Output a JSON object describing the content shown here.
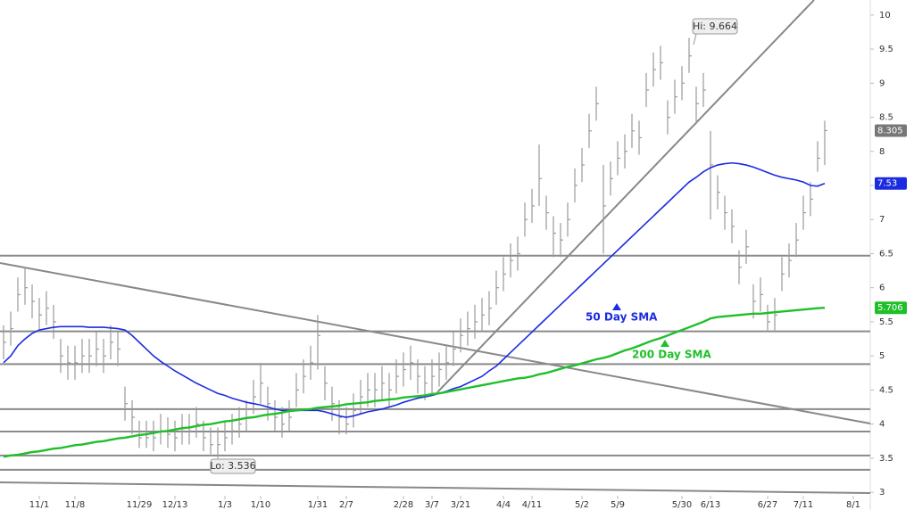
{
  "chart_data": {
    "type": "ohlc",
    "categories": [
      null,
      null,
      null,
      null,
      null,
      "11/1",
      null,
      null,
      null,
      null,
      "11/8",
      null,
      null,
      null,
      null,
      null,
      null,
      null,
      null,
      "11/29",
      null,
      null,
      null,
      null,
      "12/13",
      null,
      null,
      null,
      null,
      null,
      null,
      "1/3",
      null,
      null,
      null,
      null,
      "1/10",
      null,
      null,
      null,
      null,
      null,
      null,
      null,
      "1/31",
      null,
      null,
      null,
      "2/7",
      null,
      null,
      null,
      null,
      null,
      null,
      null,
      "2/28",
      null,
      null,
      null,
      "3/7",
      null,
      null,
      null,
      "3/21",
      null,
      null,
      null,
      null,
      null,
      "4/4",
      null,
      null,
      null,
      "4/11",
      null,
      null,
      null,
      null,
      null,
      null,
      "5/2",
      null,
      null,
      null,
      null,
      "5/9",
      null,
      null,
      null,
      null,
      null,
      null,
      null,
      null,
      "5/30",
      null,
      null,
      null,
      "6/13",
      null,
      null,
      null,
      null,
      null,
      null,
      null,
      "6/27",
      null,
      null,
      null,
      null,
      "7/11",
      null,
      null,
      null,
      null,
      null,
      null,
      "8/1"
    ],
    "high": [
      5.45,
      5.65,
      6.15,
      6.3,
      6.05,
      5.85,
      5.95,
      5.75,
      5.25,
      5.15,
      5.15,
      5.25,
      5.25,
      5.35,
      5.25,
      5.45,
      5.35,
      4.55,
      4.35,
      4.05,
      4.05,
      4.05,
      4.15,
      4.1,
      4.05,
      4.15,
      4.15,
      4.25,
      4.05,
      3.95,
      3.95,
      4.05,
      4.15,
      4.25,
      4.35,
      4.65,
      4.9,
      4.55,
      4.35,
      4.25,
      4.35,
      4.75,
      4.95,
      5.15,
      5.6,
      4.85,
      4.55,
      4.35,
      4.25,
      4.45,
      4.65,
      4.75,
      4.75,
      4.85,
      4.75,
      4.95,
      5.05,
      5.15,
      4.95,
      4.85,
      4.95,
      5.05,
      5.15,
      5.35,
      5.55,
      5.65,
      5.75,
      5.85,
      5.95,
      6.25,
      6.45,
      6.65,
      6.75,
      7.25,
      7.45,
      8.1,
      7.35,
      7.05,
      6.95,
      7.25,
      7.75,
      8.05,
      8.55,
      8.95,
      7.8,
      7.85,
      8.15,
      8.25,
      8.55,
      8.45,
      9.15,
      9.45,
      9.55,
      8.75,
      9.05,
      9.25,
      9.664,
      8.95,
      9.15,
      8.3,
      7.65,
      7.35,
      7.15,
      6.55,
      6.85,
      6.05,
      6.15,
      5.75,
      5.85,
      6.45,
      6.65,
      6.95,
      7.35,
      7.55,
      8.15,
      8.45,
      null,
      null,
      null,
      null
    ],
    "low": [
      4.95,
      5.15,
      5.65,
      5.75,
      5.55,
      5.35,
      5.45,
      5.25,
      4.75,
      4.65,
      4.65,
      4.75,
      4.75,
      4.85,
      4.75,
      4.95,
      4.85,
      4.05,
      3.85,
      3.65,
      3.65,
      3.6,
      3.7,
      3.65,
      3.6,
      3.7,
      3.7,
      3.8,
      3.6,
      3.56,
      3.536,
      3.6,
      3.7,
      3.8,
      3.9,
      4.15,
      4.3,
      4.05,
      3.9,
      3.8,
      3.9,
      4.25,
      4.45,
      4.65,
      4.8,
      4.35,
      4.05,
      3.85,
      3.85,
      3.95,
      4.15,
      4.25,
      4.25,
      4.35,
      4.25,
      4.45,
      4.55,
      4.65,
      4.45,
      4.35,
      4.45,
      4.55,
      4.65,
      4.85,
      5.05,
      5.15,
      5.25,
      5.35,
      5.45,
      5.75,
      5.95,
      6.15,
      6.25,
      6.75,
      6.95,
      7.2,
      6.85,
      6.45,
      6.45,
      6.75,
      7.25,
      7.55,
      8.05,
      8.45,
      6.5,
      7.35,
      7.65,
      7.75,
      8.05,
      7.95,
      8.65,
      8.95,
      9.05,
      8.25,
      8.55,
      8.75,
      9.15,
      8.4,
      8.65,
      7.0,
      7.15,
      6.85,
      6.65,
      6.05,
      6.35,
      5.55,
      5.65,
      5.35,
      5.35,
      5.95,
      6.15,
      6.45,
      6.85,
      7.05,
      7.7,
      7.8,
      null,
      null,
      null,
      null
    ],
    "close": [
      5.2,
      5.4,
      5.9,
      6.0,
      5.8,
      5.6,
      5.7,
      5.5,
      5.0,
      4.9,
      4.9,
      5.0,
      5.0,
      5.1,
      5.0,
      5.2,
      5.1,
      4.3,
      4.1,
      3.8,
      3.8,
      3.8,
      3.9,
      3.85,
      3.8,
      3.9,
      3.9,
      4.0,
      3.8,
      3.7,
      3.7,
      3.8,
      3.9,
      4.0,
      4.1,
      4.4,
      4.6,
      4.3,
      4.1,
      4.0,
      4.1,
      4.5,
      4.7,
      4.9,
      5.3,
      4.6,
      4.3,
      4.1,
      4.0,
      4.2,
      4.4,
      4.5,
      4.5,
      4.6,
      4.5,
      4.7,
      4.8,
      4.9,
      4.7,
      4.6,
      4.7,
      4.8,
      4.9,
      5.1,
      5.3,
      5.4,
      5.5,
      5.6,
      5.7,
      6.0,
      6.2,
      6.4,
      6.5,
      7.0,
      7.2,
      7.6,
      7.1,
      6.8,
      6.7,
      7.0,
      7.5,
      7.8,
      8.3,
      8.7,
      7.2,
      7.6,
      7.9,
      8.0,
      8.3,
      8.2,
      8.9,
      9.2,
      9.3,
      8.5,
      8.8,
      9.0,
      9.4,
      8.7,
      8.9,
      7.8,
      7.4,
      7.1,
      6.9,
      6.3,
      6.6,
      5.8,
      5.9,
      5.5,
      5.6,
      6.2,
      6.4,
      6.7,
      7.1,
      7.3,
      7.9,
      8.305,
      null,
      null,
      null,
      null
    ],
    "series": [
      {
        "name": "50 Day SMA",
        "color": "#1b2be0",
        "values": [
          4.9,
          5.0,
          5.15,
          5.25,
          5.33,
          5.38,
          5.4,
          5.42,
          5.43,
          5.43,
          5.43,
          5.43,
          5.42,
          5.42,
          5.42,
          5.41,
          5.4,
          5.38,
          5.3,
          5.2,
          5.1,
          5.0,
          4.92,
          4.85,
          4.78,
          4.72,
          4.66,
          4.6,
          4.55,
          4.5,
          4.45,
          4.42,
          4.38,
          4.35,
          4.32,
          4.3,
          4.28,
          4.25,
          4.22,
          4.2,
          4.2,
          4.2,
          4.2,
          4.2,
          4.2,
          4.18,
          4.15,
          4.12,
          4.1,
          4.12,
          4.15,
          4.18,
          4.2,
          4.22,
          4.25,
          4.28,
          4.32,
          4.35,
          4.38,
          4.4,
          4.42,
          4.45,
          4.48,
          4.52,
          4.55,
          4.6,
          4.65,
          4.7,
          4.78,
          4.85,
          4.95,
          5.05,
          5.15,
          5.25,
          5.35,
          5.45,
          5.55,
          5.65,
          5.75,
          5.85,
          5.95,
          6.05,
          6.15,
          6.25,
          6.35,
          6.45,
          6.55,
          6.65,
          6.75,
          6.85,
          6.95,
          7.05,
          7.15,
          7.25,
          7.35,
          7.45,
          7.55,
          7.62,
          7.7,
          7.76,
          7.8,
          7.82,
          7.83,
          7.82,
          7.8,
          7.77,
          7.73,
          7.69,
          7.65,
          7.62,
          7.6,
          7.58,
          7.55,
          7.5,
          7.49,
          7.53,
          null,
          null,
          null,
          null
        ]
      },
      {
        "name": "200 Day SMA",
        "color": "#1fbf2a",
        "values": [
          3.52,
          3.54,
          3.55,
          3.57,
          3.59,
          3.6,
          3.62,
          3.64,
          3.65,
          3.67,
          3.69,
          3.7,
          3.72,
          3.74,
          3.75,
          3.77,
          3.79,
          3.8,
          3.82,
          3.84,
          3.85,
          3.87,
          3.89,
          3.9,
          3.92,
          3.94,
          3.95,
          3.97,
          3.99,
          4.0,
          4.02,
          4.04,
          4.05,
          4.07,
          4.09,
          4.1,
          4.12,
          4.14,
          4.15,
          4.17,
          4.19,
          4.2,
          4.21,
          4.22,
          4.24,
          4.25,
          4.26,
          4.27,
          4.29,
          4.3,
          4.31,
          4.32,
          4.34,
          4.35,
          4.36,
          4.37,
          4.39,
          4.4,
          4.41,
          4.42,
          4.44,
          4.45,
          4.47,
          4.49,
          4.51,
          4.53,
          4.55,
          4.57,
          4.59,
          4.61,
          4.63,
          4.65,
          4.67,
          4.68,
          4.7,
          4.73,
          4.75,
          4.78,
          4.81,
          4.84,
          4.86,
          4.89,
          4.92,
          4.95,
          4.97,
          5.0,
          5.04,
          5.08,
          5.11,
          5.15,
          5.19,
          5.23,
          5.26,
          5.3,
          5.34,
          5.38,
          5.42,
          5.46,
          5.5,
          5.55,
          5.57,
          5.58,
          5.59,
          5.6,
          5.61,
          5.62,
          5.62,
          5.63,
          5.64,
          5.65,
          5.66,
          5.67,
          5.68,
          5.69,
          5.7,
          5.706,
          null,
          null,
          null,
          null
        ]
      }
    ],
    "bar_color": "#9a9a9a",
    "levels": [
      6.47,
      5.36,
      4.88,
      4.22,
      3.89,
      3.54,
      3.33
    ],
    "level_color": "#8a8a8a",
    "annotations": [
      "Hi: 9.664",
      "Lo: 3.536"
    ],
    "ylim": [
      2.74,
      10.22
    ],
    "yticks": [
      3,
      3.5,
      4,
      4.5,
      5,
      5.5,
      6,
      6.5,
      7,
      7.5,
      8,
      8.5,
      9,
      9.5,
      10
    ]
  }
}
